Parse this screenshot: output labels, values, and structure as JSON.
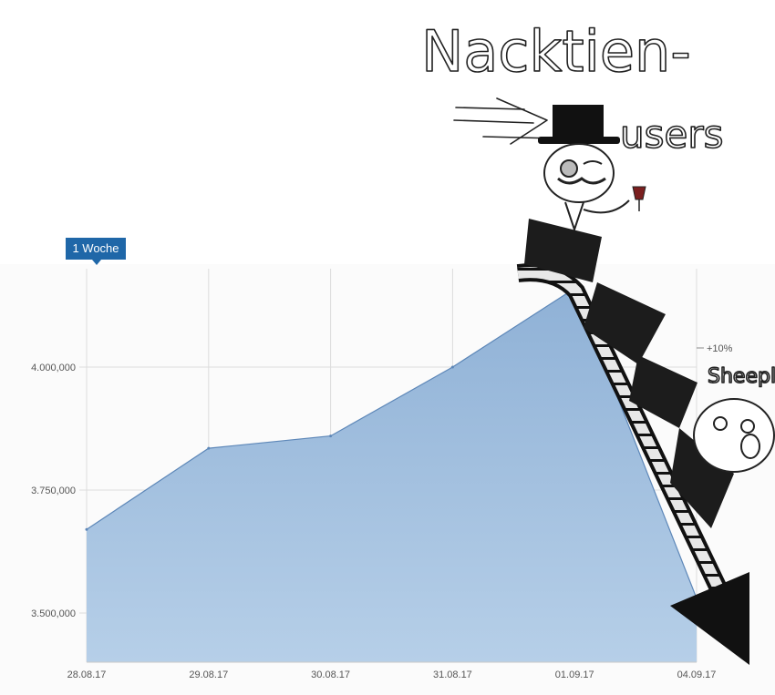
{
  "range_badge": {
    "label": "1 Woche"
  },
  "annotations": {
    "top_handwriting": "Nacktien-",
    "top_handwriting_line2": "users",
    "side_handwriting": "Sheeple",
    "pct_label": "+10%"
  },
  "colors": {
    "area_top": "#8fb1d6",
    "area_bottom": "#b6cfe8",
    "line": "#5d87b8",
    "badge": "#1f67a8",
    "grid": "#dcdcdc"
  },
  "chart_data": {
    "type": "area",
    "title": "",
    "xlabel": "",
    "ylabel": "",
    "categories": [
      "28.08.17",
      "29.08.17",
      "30.08.17",
      "31.08.17",
      "01.09.17",
      "04.09.17"
    ],
    "values": [
      3670000,
      3835000,
      3860000,
      4000000,
      4160000,
      3530000
    ],
    "ylim": [
      3400000,
      4200000
    ],
    "yticks": [
      3500000,
      3750000,
      4000000
    ],
    "ytick_labels": [
      "3.500,000",
      "3.750,000",
      "4.000,000"
    ],
    "grid": true,
    "legend": "none"
  }
}
